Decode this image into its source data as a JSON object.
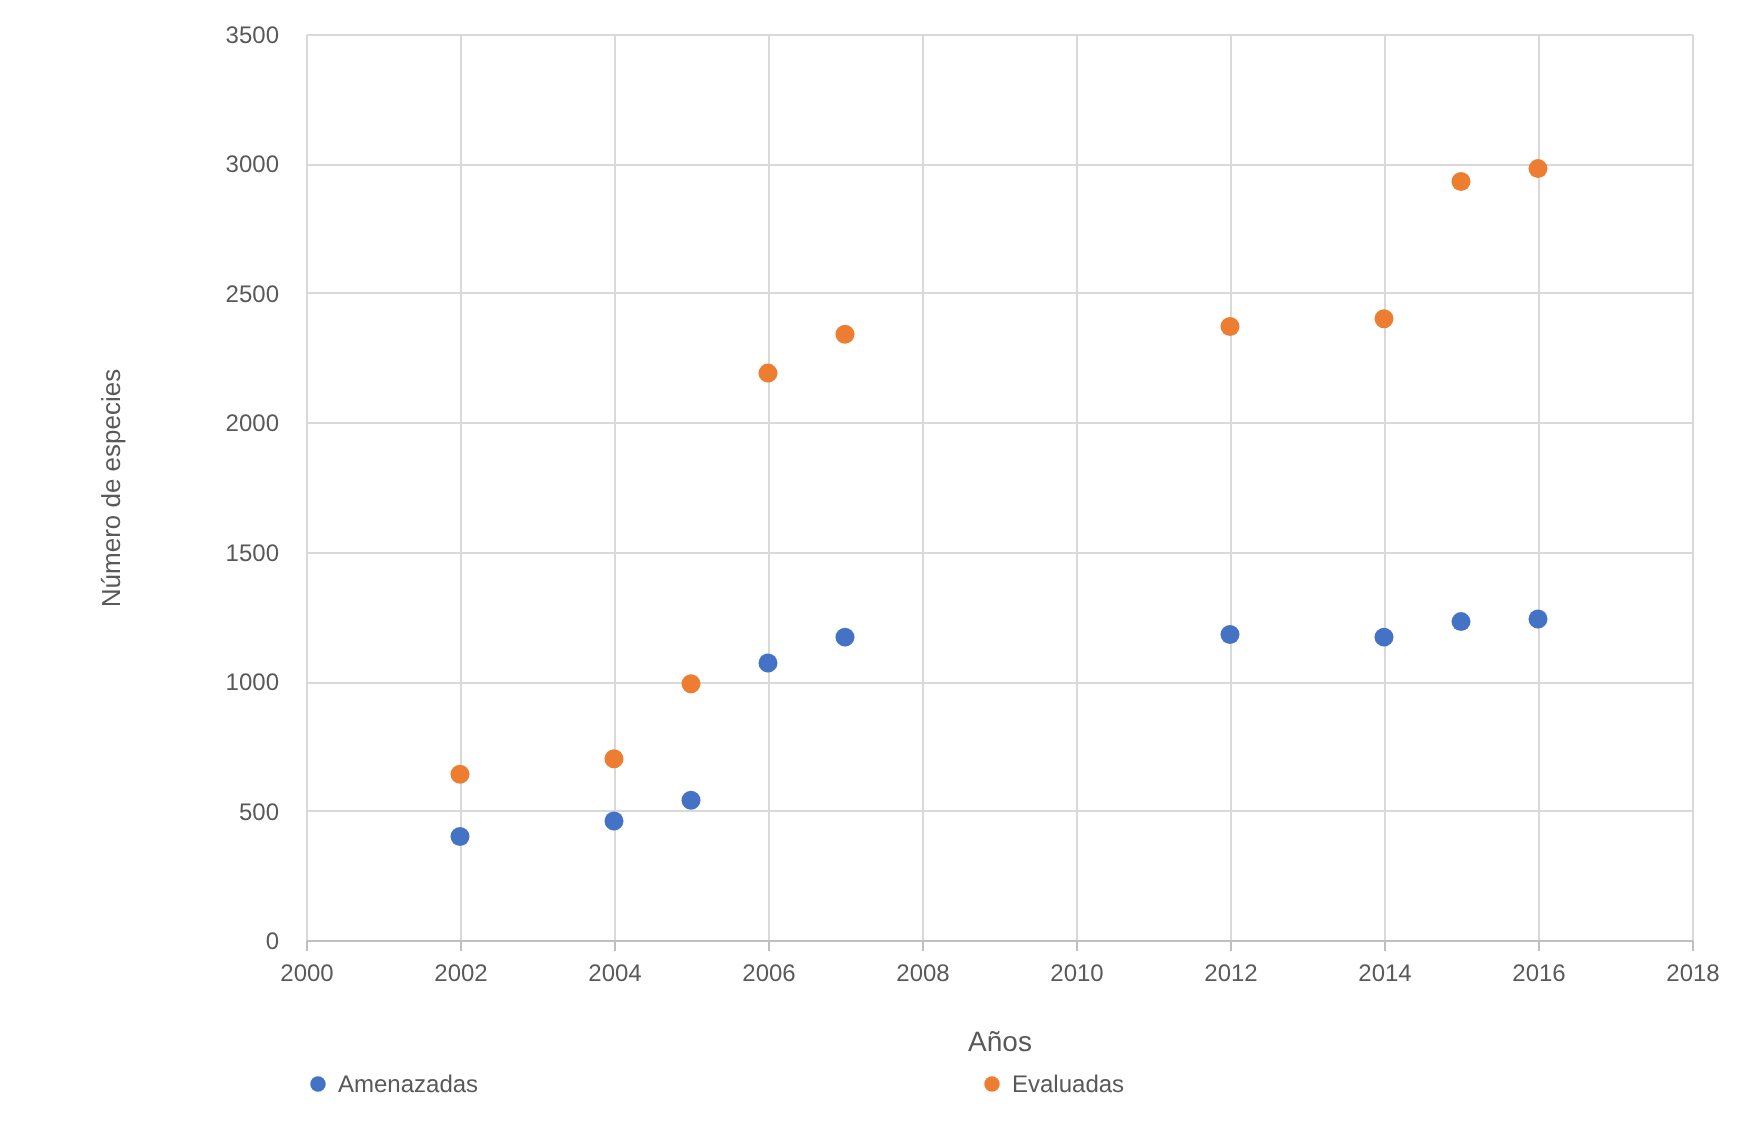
{
  "chart_data": {
    "type": "scatter",
    "xlabel": "Años",
    "ylabel": "Número de especies",
    "x": [
      2002,
      2004,
      2005,
      2006,
      2007,
      2012,
      2014,
      2015,
      2016
    ],
    "series": [
      {
        "name": "Amenazadas",
        "color": "#4472c4",
        "values": [
          400,
          460,
          540,
          1070,
          1170,
          1180,
          1170,
          1230,
          1240
        ]
      },
      {
        "name": "Evaluadas",
        "color": "#ed7d31",
        "values": [
          640,
          700,
          990,
          2190,
          2340,
          2370,
          2400,
          2930,
          2980
        ]
      }
    ],
    "xlim": [
      2000,
      2018
    ],
    "xticks": [
      2000,
      2002,
      2004,
      2006,
      2008,
      2010,
      2012,
      2014,
      2016,
      2018
    ],
    "ylim": [
      0,
      3500
    ],
    "yticks": [
      0,
      500,
      1000,
      1500,
      2000,
      2500,
      3000,
      3500
    ],
    "grid": true,
    "legend": "bottom",
    "marker": "circle"
  }
}
